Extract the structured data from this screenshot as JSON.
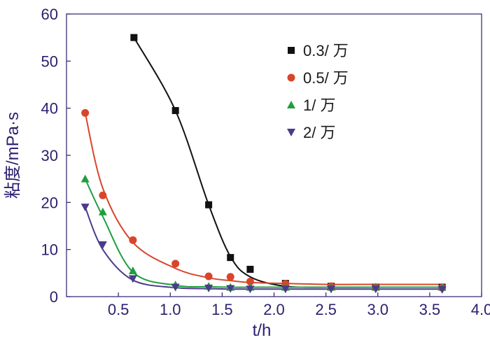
{
  "chart_data": {
    "type": "scatter",
    "xlabel": "t/h",
    "ylabel": "粘度/mPa·s",
    "xlim": [
      0,
      4.0
    ],
    "ylim": [
      0,
      60
    ],
    "xticks": [
      0.5,
      1.0,
      1.5,
      2.0,
      2.5,
      3.0,
      3.5,
      4.0
    ],
    "xtick_labels": [
      "0.5",
      "1.0",
      "1.5",
      "2.0",
      "2.5",
      "3.0",
      "3.5",
      "4.0"
    ],
    "yticks": [
      0,
      10,
      20,
      30,
      40,
      50,
      60
    ],
    "ytick_labels": [
      "0",
      "10",
      "20",
      "30",
      "40",
      "50",
      "60"
    ],
    "legend_position": "top-right",
    "series": [
      {
        "name": "0.3/ 万",
        "color": "#111111",
        "marker": "square",
        "x": [
          0.65,
          1.05,
          1.37,
          1.58,
          1.77,
          2.11,
          2.55,
          2.98,
          3.62
        ],
        "y": [
          55,
          39.5,
          19.5,
          8.3,
          5.8,
          2.8,
          2.2,
          2.0,
          2.0
        ],
        "fit_y": [
          55,
          39.5,
          19.5,
          8.5,
          4.2,
          2.2,
          2.0,
          2.0,
          2.0
        ]
      },
      {
        "name": "0.5/ 万",
        "color": "#d9452b",
        "marker": "circle",
        "x": [
          0.18,
          0.35,
          0.64,
          1.05,
          1.37,
          1.58,
          1.77,
          2.11,
          2.55,
          2.98,
          3.62
        ],
        "y": [
          39,
          21.5,
          12,
          7,
          4.3,
          4.2,
          3.2,
          2.7,
          2.2,
          2.0,
          1.9
        ],
        "fit_y": [
          39,
          23,
          11.5,
          6.0,
          4.0,
          3.4,
          3.0,
          2.8,
          2.6,
          2.6,
          2.6
        ]
      },
      {
        "name": "1/ 万",
        "color": "#1f9e3e",
        "marker": "triangle-up",
        "x": [
          0.18,
          0.35,
          0.64,
          1.05,
          1.37,
          1.58,
          1.77,
          2.11,
          2.55,
          2.98,
          3.62
        ],
        "y": [
          25,
          18,
          5.5,
          2.5,
          2.2,
          2.0,
          2.0,
          2.0,
          2.0,
          2.0,
          2.0
        ],
        "fit_y": [
          25,
          17,
          5.2,
          2.4,
          2.1,
          2.0,
          2.0,
          2.0,
          2.0,
          2.0,
          2.0
        ]
      },
      {
        "name": "2/ 万",
        "color": "#4b3b8c",
        "marker": "triangle-down",
        "x": [
          0.18,
          0.35,
          0.64,
          1.05,
          1.37,
          1.58,
          1.77,
          2.11,
          2.55,
          2.98,
          3.62
        ],
        "y": [
          19,
          11,
          3.8,
          2.0,
          1.8,
          1.7,
          1.6,
          1.6,
          1.6,
          1.6,
          1.5
        ],
        "fit_y": [
          19,
          10,
          3.5,
          1.9,
          1.7,
          1.6,
          1.6,
          1.6,
          1.6,
          1.6,
          1.6
        ]
      }
    ]
  }
}
